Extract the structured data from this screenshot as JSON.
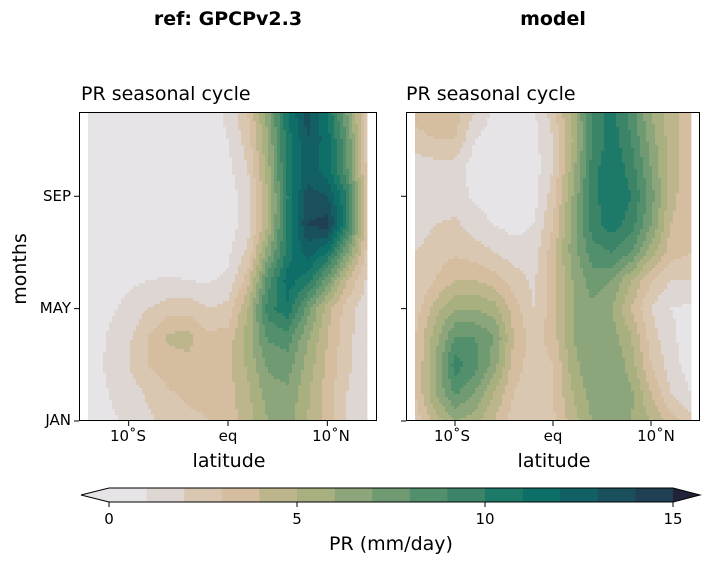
{
  "figure": {
    "colorbar_label": "PR (mm/day)"
  },
  "colors": {
    "cmap": [
      "#e6e4e6",
      "#ded6d3",
      "#d9c7b1",
      "#d5bea0",
      "#bdb68d",
      "#a9b080",
      "#8da57b",
      "#6f9a72",
      "#528f6c",
      "#3b8468",
      "#1d7a68",
      "#0d6f68",
      "#125f64",
      "#1a4f5c",
      "#203f53",
      "#232f48",
      "#22223a"
    ]
  },
  "chart_data": [
    {
      "type": "contour",
      "suptitle": "ref: GPCPv2.3",
      "title": "PR seasonal cycle",
      "xlabel": "latitude",
      "ylabel": "months",
      "x_ticks": [
        {
          "value": -10,
          "label": "10$^\\circ$S",
          "text": "10˚S"
        },
        {
          "value": 0,
          "label": "eq",
          "text": "eq"
        },
        {
          "value": 10,
          "label": "10$^\\circ$N",
          "text": "10˚N"
        }
      ],
      "y_ticks": [
        {
          "value": 1,
          "label": "JAN"
        },
        {
          "value": 5,
          "label": "MAY"
        },
        {
          "value": 9,
          "label": "SEP"
        }
      ],
      "xlim": [
        -15,
        15
      ],
      "ylim": [
        1,
        12
      ],
      "lat": [
        -14,
        -12,
        -10,
        -8,
        -6,
        -4,
        -2,
        0,
        2,
        4,
        6,
        8,
        10,
        12,
        14
      ],
      "months": [
        1,
        2,
        3,
        4,
        5,
        6,
        7,
        8,
        9,
        10,
        11,
        12
      ],
      "values": [
        [
          0.5,
          0.8,
          1.2,
          1.8,
          2.4,
          2.8,
          3.0,
          3.5,
          4.5,
          6.0,
          6.5,
          5.0,
          3.5,
          2.0,
          1.2
        ],
        [
          0.5,
          1.0,
          1.5,
          2.2,
          2.9,
          3.2,
          3.2,
          3.6,
          4.8,
          6.5,
          6.8,
          5.2,
          3.5,
          2.0,
          1.2
        ],
        [
          0.5,
          1.2,
          2.0,
          3.0,
          3.5,
          3.7,
          3.5,
          3.7,
          5.2,
          7.2,
          7.5,
          5.6,
          3.8,
          2.2,
          1.3
        ],
        [
          0.4,
          1.1,
          1.8,
          3.0,
          4.2,
          4.4,
          3.2,
          3.4,
          5.5,
          8.2,
          8.5,
          6.2,
          4.0,
          2.3,
          1.3
        ],
        [
          0.3,
          0.8,
          1.3,
          2.0,
          2.5,
          2.6,
          2.0,
          2.3,
          5.0,
          9.5,
          10.8,
          7.5,
          4.5,
          2.5,
          1.4
        ],
        [
          0.2,
          0.5,
          0.8,
          1.0,
          1.1,
          1.0,
          0.9,
          1.2,
          3.5,
          8.5,
          11.5,
          10.5,
          7.5,
          4.0,
          1.8
        ],
        [
          0.1,
          0.3,
          0.5,
          0.5,
          0.5,
          0.5,
          0.5,
          0.8,
          2.2,
          6.5,
          10.5,
          12.5,
          11.0,
          7.0,
          2.6
        ],
        [
          0.1,
          0.2,
          0.3,
          0.3,
          0.3,
          0.3,
          0.3,
          0.5,
          1.5,
          5.0,
          10.2,
          14.0,
          14.5,
          10.0,
          3.0
        ],
        [
          0.1,
          0.2,
          0.2,
          0.2,
          0.2,
          0.2,
          0.3,
          0.5,
          1.5,
          5.0,
          10.0,
          13.5,
          13.0,
          10.0,
          3.0
        ],
        [
          0.1,
          0.2,
          0.2,
          0.2,
          0.2,
          0.2,
          0.3,
          0.7,
          2.0,
          5.5,
          10.5,
          12.5,
          11.5,
          8.0,
          2.6
        ],
        [
          0.1,
          0.2,
          0.2,
          0.2,
          0.2,
          0.3,
          0.5,
          1.0,
          2.5,
          6.0,
          10.5,
          13.0,
          11.5,
          8.0,
          2.4
        ],
        [
          0.2,
          0.3,
          0.3,
          0.3,
          0.3,
          0.4,
          0.6,
          1.2,
          3.0,
          6.5,
          11.0,
          13.5,
          11.0,
          7.0,
          2.2
        ]
      ]
    },
    {
      "type": "contour",
      "suptitle": "model",
      "title": "PR seasonal cycle",
      "xlabel": "latitude",
      "ylabel": "",
      "x_ticks": [
        {
          "value": -10,
          "label": "10$^\\circ$S",
          "text": "10˚S"
        },
        {
          "value": 0,
          "label": "eq",
          "text": "eq"
        },
        {
          "value": 10,
          "label": "10$^\\circ$N",
          "text": "10˚N"
        }
      ],
      "y_ticks": [
        {
          "value": 1,
          "label": ""
        },
        {
          "value": 5,
          "label": ""
        },
        {
          "value": 9,
          "label": ""
        }
      ],
      "xlim": [
        -15,
        15
      ],
      "ylim": [
        1,
        12
      ],
      "lat": [
        -14,
        -12,
        -10,
        -8,
        -6,
        -4,
        -2,
        0,
        2,
        4,
        6,
        8,
        10,
        12,
        14
      ],
      "months": [
        1,
        2,
        3,
        4,
        5,
        6,
        7,
        8,
        9,
        10,
        11,
        12
      ],
      "values": [
        [
          2.5,
          4.5,
          6.0,
          5.5,
          4.0,
          2.5,
          2.0,
          2.8,
          4.5,
          6.0,
          6.8,
          6.0,
          5.0,
          3.5,
          2.5
        ],
        [
          3.0,
          6.0,
          8.2,
          7.0,
          5.0,
          3.0,
          2.2,
          3.0,
          5.0,
          6.5,
          7.0,
          6.2,
          4.0,
          2.0,
          1.0
        ],
        [
          3.0,
          6.0,
          9.5,
          8.5,
          6.5,
          3.5,
          2.5,
          3.0,
          5.5,
          7.0,
          7.0,
          5.5,
          3.0,
          1.5,
          0.5
        ],
        [
          3.0,
          5.5,
          8.0,
          8.0,
          7.0,
          4.0,
          2.5,
          3.5,
          6.0,
          7.0,
          6.5,
          5.0,
          2.5,
          1.2,
          0.5
        ],
        [
          2.5,
          4.5,
          6.0,
          6.0,
          5.5,
          3.5,
          2.0,
          3.5,
          6.0,
          6.8,
          6.0,
          4.0,
          2.0,
          1.0,
          0.8
        ],
        [
          2.0,
          3.0,
          4.0,
          4.0,
          3.5,
          2.5,
          1.8,
          3.5,
          6.0,
          7.5,
          7.0,
          5.0,
          3.0,
          2.0,
          2.0
        ],
        [
          2.0,
          2.5,
          2.8,
          2.5,
          2.0,
          1.5,
          1.5,
          3.5,
          6.5,
          8.5,
          9.0,
          8.0,
          5.5,
          3.5,
          3.0
        ],
        [
          1.5,
          2.0,
          2.2,
          1.5,
          1.0,
          0.6,
          1.0,
          3.0,
          6.5,
          9.5,
          10.5,
          9.5,
          7.0,
          4.0,
          3.0
        ],
        [
          1.2,
          1.2,
          1.5,
          0.8,
          0.3,
          0.3,
          0.5,
          2.5,
          6.0,
          9.5,
          11.0,
          10.0,
          7.5,
          4.5,
          3.0
        ],
        [
          1.5,
          1.5,
          1.5,
          0.5,
          0.3,
          0.3,
          0.5,
          2.0,
          5.5,
          9.5,
          11.0,
          9.5,
          7.0,
          4.5,
          3.5
        ],
        [
          2.5,
          3.0,
          3.0,
          1.0,
          0.4,
          0.3,
          0.6,
          2.0,
          5.0,
          9.0,
          10.5,
          9.0,
          6.5,
          4.5,
          3.5
        ],
        [
          3.5,
          4.0,
          3.5,
          2.0,
          0.8,
          0.5,
          0.8,
          2.5,
          5.5,
          9.0,
          10.5,
          8.5,
          6.0,
          4.5,
          3.5
        ]
      ]
    }
  ],
  "colorbar": {
    "levels": [
      0,
      1,
      2,
      3,
      4,
      5,
      6,
      7,
      8,
      9,
      10,
      11,
      12,
      13,
      14,
      15
    ],
    "ticks": [
      {
        "value": 0,
        "label": "0"
      },
      {
        "value": 5,
        "label": "5"
      },
      {
        "value": 10,
        "label": "10"
      },
      {
        "value": 15,
        "label": "15"
      }
    ],
    "extend": "both"
  }
}
